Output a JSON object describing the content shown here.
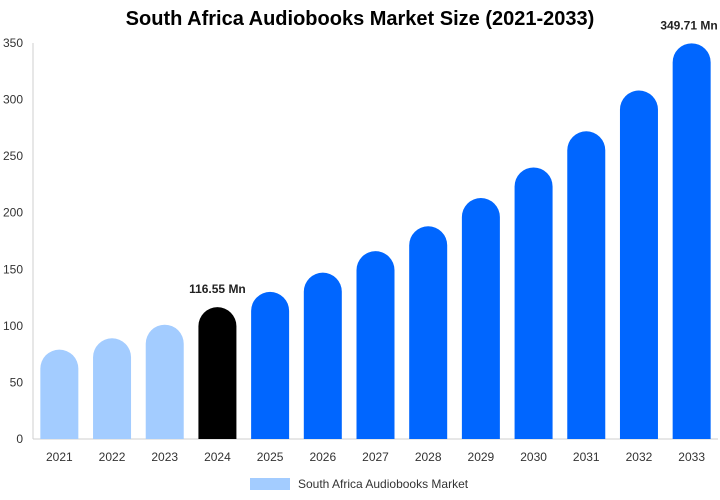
{
  "chart_data": {
    "type": "bar",
    "title": "South Africa Audiobooks Market Size (2021-2033)",
    "xlabel": "",
    "ylabel": "",
    "ylim": [
      0,
      350
    ],
    "yticks": [
      0,
      50,
      100,
      150,
      200,
      250,
      300,
      350
    ],
    "categories": [
      "2021",
      "2022",
      "2023",
      "2024",
      "2025",
      "2026",
      "2027",
      "2028",
      "2029",
      "2030",
      "2031",
      "2032",
      "2033"
    ],
    "series": [
      {
        "name": "South Africa Audiobooks Market",
        "values": [
          79,
          89,
          101,
          116.55,
          130,
          147,
          166,
          188,
          213,
          240,
          272,
          308,
          349.71
        ]
      }
    ],
    "bar_colors": [
      "#a3ccff",
      "#a3ccff",
      "#a3ccff",
      "#000000",
      "#0066ff",
      "#0066ff",
      "#0066ff",
      "#0066ff",
      "#0066ff",
      "#0066ff",
      "#0066ff",
      "#0066ff",
      "#0066ff"
    ],
    "data_labels": [
      {
        "index": 3,
        "text": "116.55 Mn"
      },
      {
        "index": 12,
        "text": "349.71 Mn"
      }
    ],
    "legend": {
      "position": "bottom",
      "color": "#a3ccff"
    },
    "grid": false
  }
}
